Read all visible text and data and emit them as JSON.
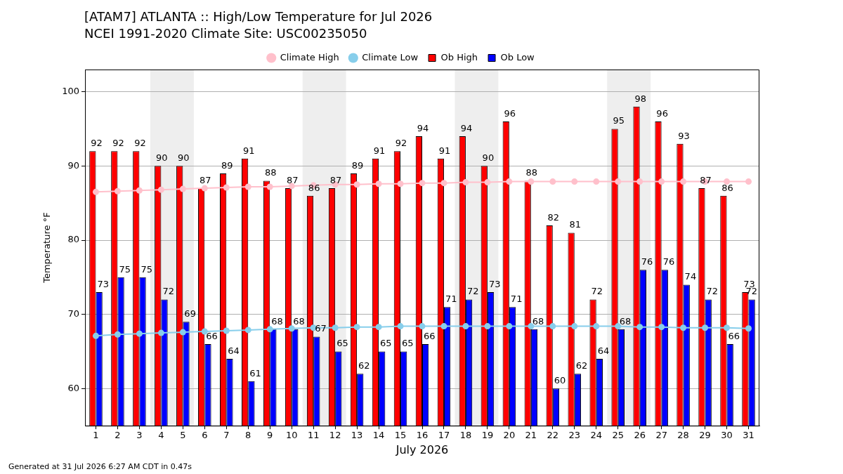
{
  "chart_data": {
    "type": "bar",
    "title": "[ATAM7] ATLANTA :: High/Low Temperature for Jul 2026",
    "subtitle": "NCEI 1991-2020 Climate Site: USC00235050",
    "xlabel": "July 2026",
    "ylabel": "Temperature °F",
    "annotations": [
      "Generated at 31 Jul 2026 6:27 AM CDT in 0.47s"
    ],
    "x": [
      1,
      2,
      3,
      4,
      5,
      6,
      7,
      8,
      9,
      10,
      11,
      12,
      13,
      14,
      15,
      16,
      17,
      18,
      19,
      20,
      21,
      22,
      23,
      24,
      25,
      26,
      27,
      28,
      29,
      30,
      31
    ],
    "series": [
      {
        "name": "Climate High",
        "type": "line",
        "color": "#ffc0cb",
        "values": [
          86.5,
          86.6,
          86.7,
          86.8,
          86.9,
          87.0,
          87.1,
          87.2,
          87.2,
          87.3,
          87.4,
          87.5,
          87.5,
          87.6,
          87.6,
          87.7,
          87.7,
          87.8,
          87.8,
          87.9,
          87.9,
          87.9,
          87.9,
          87.9,
          87.9,
          87.9,
          87.9,
          87.9,
          87.9,
          87.9,
          87.9
        ]
      },
      {
        "name": "Climate Low",
        "type": "line",
        "color": "#87ceeb",
        "values": [
          67.1,
          67.3,
          67.4,
          67.5,
          67.6,
          67.7,
          67.8,
          67.9,
          68.0,
          68.1,
          68.2,
          68.2,
          68.3,
          68.3,
          68.4,
          68.4,
          68.4,
          68.4,
          68.4,
          68.4,
          68.4,
          68.4,
          68.4,
          68.4,
          68.4,
          68.3,
          68.3,
          68.2,
          68.2,
          68.2,
          68.1
        ]
      },
      {
        "name": "Ob High",
        "color": "#ff0000",
        "values": [
          92,
          92,
          92,
          90,
          90,
          87,
          89,
          91,
          88,
          87,
          86,
          87,
          89,
          91,
          92,
          94,
          91,
          94,
          90,
          96,
          88,
          82,
          81,
          72,
          95,
          98,
          96,
          93,
          87,
          86,
          73
        ],
        "value_labels": [
          "92",
          "92",
          "92",
          "90",
          "90",
          "87",
          "89",
          "91",
          "88",
          "87",
          "86",
          "87",
          "89",
          "91",
          "92",
          "94",
          "91",
          "94",
          "90",
          "96",
          "88",
          "82",
          "81",
          "72",
          "95",
          "98",
          "96",
          "93",
          "87",
          "86",
          "73"
        ]
      },
      {
        "name": "Ob Low",
        "color": "#0000ff",
        "values": [
          73,
          75,
          75,
          72,
          69,
          66,
          64,
          61,
          68,
          68,
          67,
          65,
          62,
          65,
          65,
          66,
          71,
          72,
          73,
          71,
          68,
          60,
          62,
          64,
          68,
          76,
          76,
          74,
          72,
          66,
          72
        ],
        "value_labels": [
          "73",
          "75",
          "75",
          "72",
          "69",
          "66",
          "64",
          "61",
          "68",
          "68",
          "67",
          "65",
          "62",
          "65",
          "65",
          "66",
          "71",
          "72",
          "73",
          "71",
          "68",
          "60",
          "62",
          "64",
          "68",
          "76",
          "76",
          "74",
          "72",
          "66",
          "72"
        ]
      }
    ],
    "xlim": [
      0.5,
      31.5
    ],
    "xticks": [
      1,
      2,
      3,
      4,
      5,
      6,
      7,
      8,
      9,
      10,
      11,
      12,
      13,
      14,
      15,
      16,
      17,
      18,
      19,
      20,
      21,
      22,
      23,
      24,
      25,
      26,
      27,
      28,
      29,
      30,
      31
    ],
    "ylim": [
      55,
      103
    ],
    "yticks": [
      60,
      70,
      80,
      90,
      100
    ],
    "bands": [
      {
        "axis": "x",
        "from": 3.5,
        "to": 5.5,
        "color": "#eeeeee"
      },
      {
        "axis": "x",
        "from": 10.5,
        "to": 12.5,
        "color": "#eeeeee"
      },
      {
        "axis": "x",
        "from": 17.5,
        "to": 19.5,
        "color": "#eeeeee"
      },
      {
        "axis": "x",
        "from": 24.5,
        "to": 26.5,
        "color": "#eeeeee"
      }
    ],
    "grid": "y",
    "legend": "top",
    "marker": "circle"
  }
}
